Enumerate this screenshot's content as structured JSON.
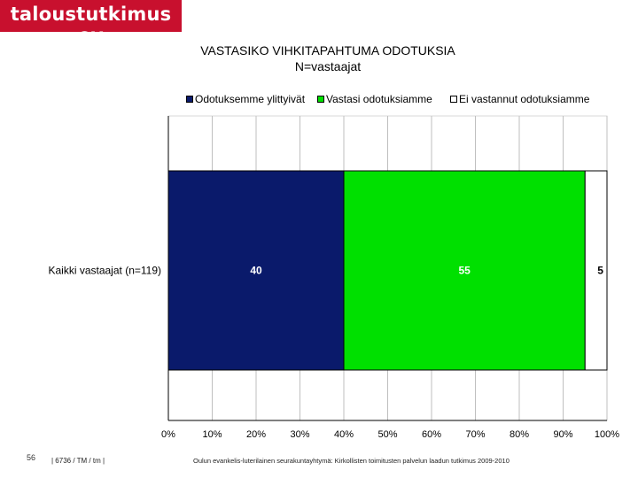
{
  "brand": {
    "logo_text": "taloustutkimus oy",
    "color": "#c8102e"
  },
  "footer": {
    "page_number": "56",
    "code": "| 6736 / TM / tm |",
    "source": "Oulun evankelis-luterilainen seurakuntayhtymä: Kirkollisten toimitusten palvelun laadun tutkimus 2009-2010"
  },
  "chart_data": {
    "type": "bar",
    "orientation": "horizontal",
    "stacked": true,
    "title": "VASTASIKO VIHKITAPAHTUMA ODOTUKSIA",
    "subtitle": "N=vastaajat",
    "categories": [
      "Kaikki vastaajat (n=119)"
    ],
    "series": [
      {
        "name": "Odotuksemme ylittyivät",
        "values": [
          40
        ],
        "color": "#0a1a6b",
        "label_color": "#ffffff"
      },
      {
        "name": "Vastasi odotuksiamme",
        "values": [
          55
        ],
        "color": "#00e000",
        "label_color": "#ffffff"
      },
      {
        "name": "Ei vastannut odotuksiamme",
        "values": [
          5
        ],
        "color": "#ffffff",
        "label_color": "#000000"
      }
    ],
    "xlim": [
      0,
      100
    ],
    "xticks": [
      "0%",
      "10%",
      "20%",
      "30%",
      "40%",
      "50%",
      "60%",
      "70%",
      "80%",
      "90%",
      "100%"
    ],
    "grid": true,
    "legend": "top"
  }
}
